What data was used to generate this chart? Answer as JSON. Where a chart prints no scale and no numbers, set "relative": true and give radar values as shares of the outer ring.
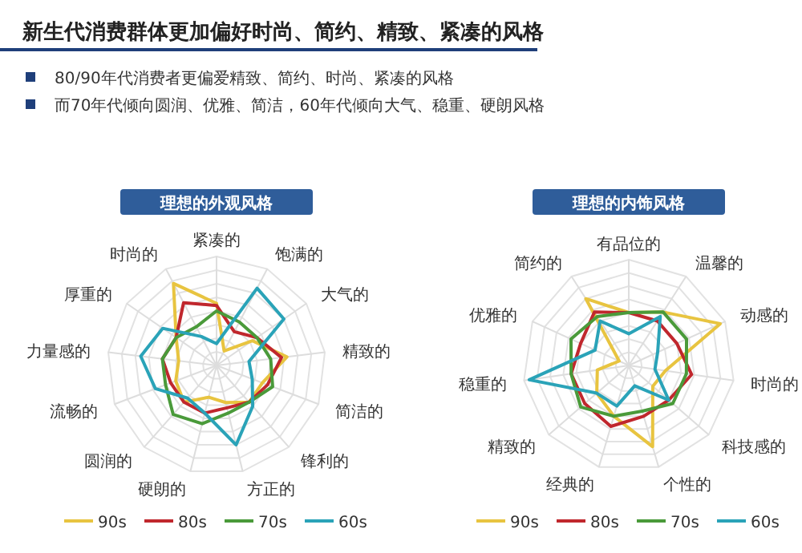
{
  "chart_data": [
    {
      "type": "other",
      "title": "新生代消费群体更加偏好时尚、简约、精致、紧凑的风格",
      "annotations": [
        "80/90年代消费者更偏爱精致、简约、时尚、紧凑的风格",
        "而70年代倾向圆润、优雅、简洁，60年代倾向大气、稳重、硬朗风格"
      ]
    },
    {
      "type": "radar",
      "relative": true,
      "title": "理想的外观风格",
      "legend": "bottom",
      "grid": true,
      "categories": [
        "紧凑的",
        "饱满的",
        "大气的",
        "精致的",
        "简洁的",
        "锋利的",
        "方正的",
        "硬朗的",
        "圆润的",
        "流畅的",
        "力量感的",
        "厚重的",
        "时尚的"
      ],
      "series": [
        {
          "name": "90s",
          "color": "#e8c440",
          "values": [
            0.57,
            0.15,
            0.4,
            0.65,
            0.45,
            0.45,
            0.35,
            0.3,
            0.45,
            0.4,
            0.35,
            0.45,
            0.85
          ]
        },
        {
          "name": "80s",
          "color": "#c0272d",
          "values": [
            0.55,
            0.35,
            0.45,
            0.6,
            0.5,
            0.45,
            0.4,
            0.45,
            0.45,
            0.45,
            0.5,
            0.45,
            0.65
          ]
        },
        {
          "name": "70s",
          "color": "#4a9a3a",
          "values": [
            0.5,
            0.45,
            0.45,
            0.5,
            0.55,
            0.45,
            0.45,
            0.55,
            0.6,
            0.5,
            0.5,
            0.45,
            0.4
          ]
        },
        {
          "name": "60s",
          "color": "#2aa3b8",
          "values": [
            0.2,
            0.8,
            0.75,
            0.3,
            0.35,
            0.5,
            0.75,
            0.45,
            0.4,
            0.6,
            0.7,
            0.6,
            0.3
          ]
        }
      ]
    },
    {
      "type": "radar",
      "relative": true,
      "title": "理想的内饰风格",
      "legend": "bottom",
      "grid": true,
      "categories": [
        "有品位的",
        "温馨的",
        "动感的",
        "时尚的",
        "科技感的",
        "个性的",
        "经典的",
        "精致的",
        "稳重的",
        "优雅的",
        "简约的"
      ],
      "series": [
        {
          "name": "90s",
          "color": "#e8c440",
          "values": [
            0.5,
            0.6,
            0.95,
            0.35,
            0.3,
            0.8,
            0.5,
            0.4,
            0.3,
            0.1,
            0.75
          ]
        },
        {
          "name": "80s",
          "color": "#c0272d",
          "values": [
            0.5,
            0.5,
            0.5,
            0.6,
            0.5,
            0.5,
            0.6,
            0.55,
            0.55,
            0.5,
            0.6
          ]
        },
        {
          "name": "70s",
          "color": "#4a9a3a",
          "values": [
            0.5,
            0.6,
            0.6,
            0.55,
            0.55,
            0.45,
            0.5,
            0.6,
            0.55,
            0.6,
            0.55
          ]
        },
        {
          "name": "60s",
          "color": "#2aa3b8",
          "values": [
            0.3,
            0.55,
            0.3,
            0.25,
            0.5,
            0.2,
            0.4,
            0.4,
            0.95,
            0.35,
            0.5
          ]
        }
      ]
    }
  ]
}
